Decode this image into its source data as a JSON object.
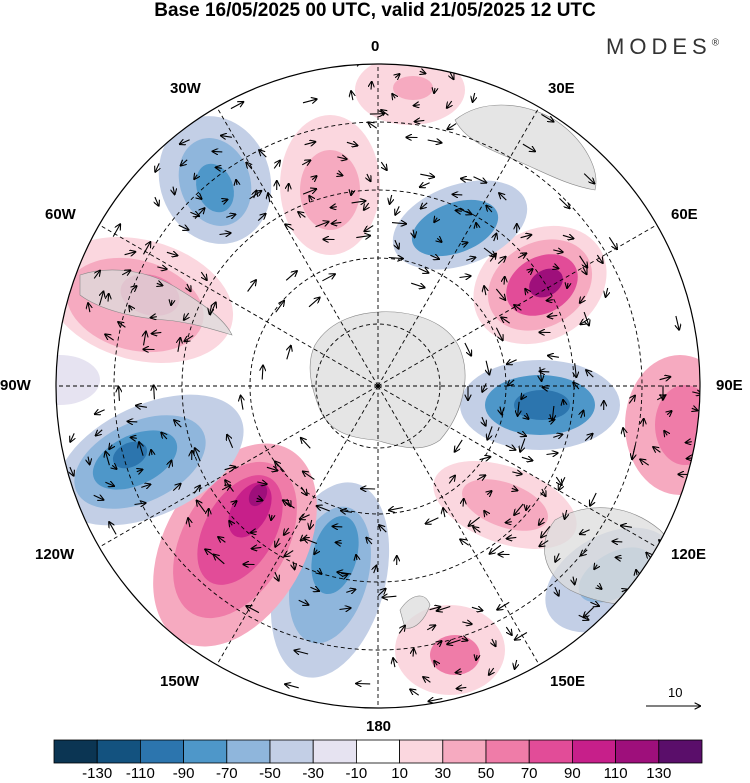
{
  "title": "Base 16/05/2025 00 UTC, valid 21/05/2025 12 UTC",
  "brand": {
    "name": "MODES",
    "mark": "®"
  },
  "longitude_labels": {
    "lon_0": "0",
    "lon_30e": "30E",
    "lon_60e": "60E",
    "lon_90e": "90E",
    "lon_120e": "120E",
    "lon_150e": "150E",
    "lon_180": "180",
    "lon_150w": "150W",
    "lon_120w": "120W",
    "lon_90w": "90W",
    "lon_60w": "60W",
    "lon_30w": "30W"
  },
  "reference_vector": {
    "label": "10"
  },
  "colorbar": {
    "colors": [
      "#0b3553",
      "#13527f",
      "#2c75ae",
      "#4e97c9",
      "#8fb6dc",
      "#c3cfe6",
      "#e6e3f1",
      "#ffffff",
      "#fbd7df",
      "#f6aac0",
      "#ef7ca8",
      "#e24c98",
      "#c71f8a",
      "#9e0f7b",
      "#5a0e6a"
    ],
    "labels": [
      "-130",
      "-110",
      "-90",
      "-70",
      "-50",
      "-30",
      "-10",
      "10",
      "30",
      "50",
      "70",
      "90",
      "110",
      "130"
    ]
  },
  "anomaly_centers": [
    {
      "sign": "positive",
      "peak": 110,
      "label": "near 45E"
    },
    {
      "sign": "negative",
      "peak": -90,
      "label": "near 90E"
    },
    {
      "sign": "positive",
      "peak": 70,
      "label": "near 100E"
    },
    {
      "sign": "positive",
      "peak": 50,
      "label": "near 130E"
    },
    {
      "sign": "negative",
      "peak": -50,
      "label": "near 120E"
    },
    {
      "sign": "positive",
      "peak": 50,
      "label": "near 160E"
    },
    {
      "sign": "negative",
      "peak": -90,
      "label": "near 170W"
    },
    {
      "sign": "positive",
      "peak": 110,
      "label": "near 140W"
    },
    {
      "sign": "negative",
      "peak": -90,
      "label": "near 110W"
    },
    {
      "sign": "positive",
      "peak": 70,
      "label": "near 70W"
    },
    {
      "sign": "negative",
      "peak": -70,
      "label": "near 30W"
    },
    {
      "sign": "positive",
      "peak": 50,
      "label": "near 10W"
    },
    {
      "sign": "negative",
      "peak": -70,
      "label": "near 20E"
    }
  ]
}
